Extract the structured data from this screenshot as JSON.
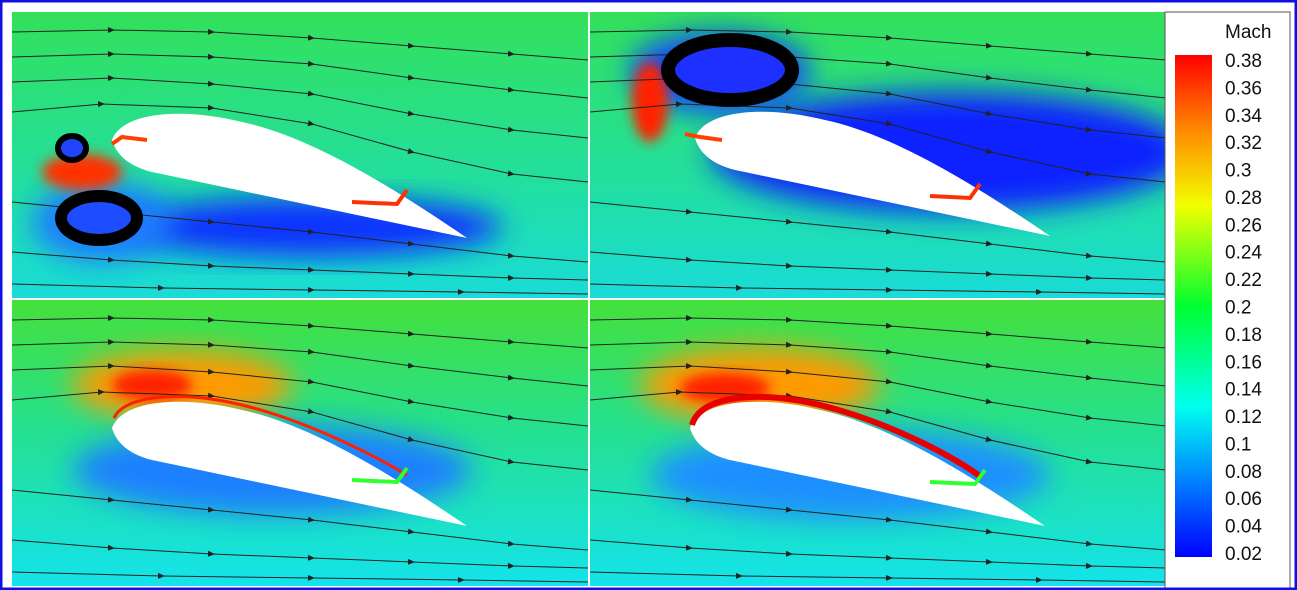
{
  "colorbar": {
    "title": "Mach",
    "ticks": [
      0.38,
      0.36,
      0.34,
      0.32,
      0.3,
      0.28,
      0.26,
      0.24,
      0.22,
      0.2,
      0.18,
      0.16,
      0.14,
      0.12,
      0.1,
      0.08,
      0.06,
      0.04,
      0.02
    ]
  }
}
